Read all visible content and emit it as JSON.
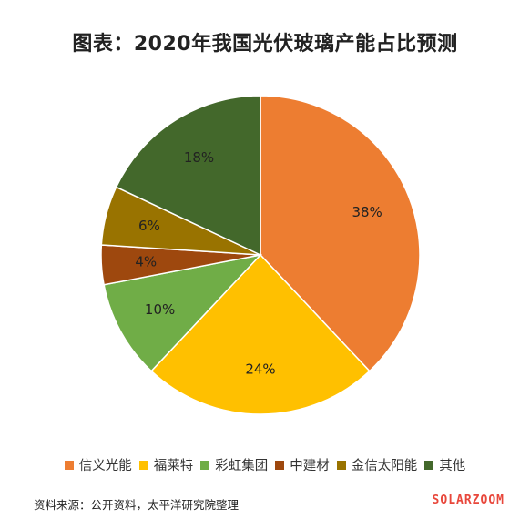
{
  "chart_data": {
    "type": "pie",
    "title": "图表：2020年我国光伏玻璃产能占比预测",
    "categories": [
      "信义光能",
      "福莱特",
      "彩虹集团",
      "中建材",
      "金信太阳能",
      "其他"
    ],
    "values": [
      38,
      24,
      10,
      4,
      6,
      18
    ],
    "labels": [
      "38%",
      "24%",
      "10%",
      "4%",
      "6%",
      "18%"
    ],
    "colors": [
      "#ED7D31",
      "#FFC000",
      "#70AD47",
      "#9E480E",
      "#997300",
      "#43682B"
    ],
    "legend_position": "bottom",
    "start_angle_deg": 0,
    "direction": "clockwise"
  },
  "source_note": "资料来源：公开资料，太平洋研究院整理",
  "watermark": "SOLARZOOM"
}
